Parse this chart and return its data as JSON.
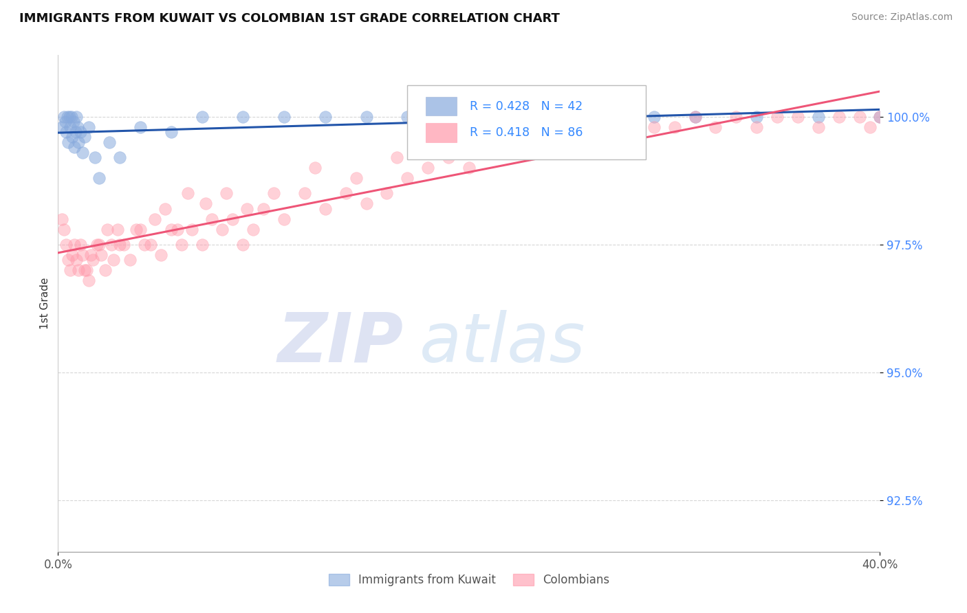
{
  "title": "IMMIGRANTS FROM KUWAIT VS COLOMBIAN 1ST GRADE CORRELATION CHART",
  "source_text": "Source: ZipAtlas.com",
  "ylabel": "1st Grade",
  "xlim": [
    0.0,
    40.0
  ],
  "ylim": [
    91.5,
    101.2
  ],
  "yticks": [
    92.5,
    95.0,
    97.5,
    100.0
  ],
  "xtick_labels": [
    "0.0%",
    "40.0%"
  ],
  "kuwait_R": 0.428,
  "kuwait_N": 42,
  "colombia_R": 0.418,
  "colombia_N": 86,
  "kuwait_color": "#88AADD",
  "colombia_color": "#FF99AA",
  "kuwait_line_color": "#2255AA",
  "colombia_line_color": "#EE5577",
  "watermark_zip": "ZIP",
  "watermark_atlas": "atlas",
  "kuwait_x": [
    0.2,
    0.3,
    0.35,
    0.4,
    0.45,
    0.5,
    0.55,
    0.6,
    0.65,
    0.7,
    0.75,
    0.8,
    0.85,
    0.9,
    0.95,
    1.0,
    1.1,
    1.2,
    1.3,
    1.5,
    1.8,
    2.0,
    2.5,
    3.0,
    4.0,
    5.5,
    7.0,
    9.0,
    11.0,
    13.0,
    15.0,
    17.0,
    19.0,
    21.0,
    23.0,
    25.0,
    27.0,
    29.0,
    31.0,
    34.0,
    37.0,
    40.0
  ],
  "kuwait_y": [
    99.8,
    100.0,
    99.9,
    99.7,
    100.0,
    99.5,
    100.0,
    99.8,
    100.0,
    99.6,
    99.9,
    99.4,
    99.7,
    100.0,
    99.8,
    99.5,
    99.7,
    99.3,
    99.6,
    99.8,
    99.2,
    98.8,
    99.5,
    99.2,
    99.8,
    99.7,
    100.0,
    100.0,
    100.0,
    100.0,
    100.0,
    100.0,
    100.0,
    100.0,
    100.0,
    100.0,
    100.0,
    100.0,
    100.0,
    100.0,
    100.0,
    100.0
  ],
  "colombia_x": [
    0.2,
    0.3,
    0.4,
    0.5,
    0.6,
    0.7,
    0.8,
    0.9,
    1.0,
    1.1,
    1.2,
    1.3,
    1.5,
    1.7,
    1.9,
    2.1,
    2.3,
    2.6,
    2.9,
    3.2,
    3.5,
    4.0,
    4.5,
    5.0,
    5.5,
    6.0,
    6.5,
    7.0,
    7.5,
    8.0,
    8.5,
    9.0,
    9.5,
    10.0,
    11.0,
    12.0,
    13.0,
    14.0,
    15.0,
    16.0,
    17.0,
    18.0,
    19.0,
    20.0,
    21.0,
    22.0,
    23.0,
    24.0,
    25.0,
    26.0,
    27.0,
    28.0,
    29.0,
    30.0,
    31.0,
    32.0,
    33.0,
    34.0,
    35.0,
    36.0,
    37.0,
    38.0,
    39.0,
    39.5,
    40.0,
    1.4,
    1.6,
    2.0,
    2.4,
    2.7,
    3.0,
    3.8,
    4.2,
    4.7,
    5.2,
    5.8,
    6.3,
    7.2,
    8.2,
    9.2,
    10.5,
    12.5,
    14.5,
    16.5,
    18.5,
    21.5
  ],
  "colombia_y": [
    98.0,
    97.8,
    97.5,
    97.2,
    97.0,
    97.3,
    97.5,
    97.2,
    97.0,
    97.5,
    97.3,
    97.0,
    96.8,
    97.2,
    97.5,
    97.3,
    97.0,
    97.5,
    97.8,
    97.5,
    97.2,
    97.8,
    97.5,
    97.3,
    97.8,
    97.5,
    97.8,
    97.5,
    98.0,
    97.8,
    98.0,
    97.5,
    97.8,
    98.2,
    98.0,
    98.5,
    98.2,
    98.5,
    98.3,
    98.5,
    98.8,
    99.0,
    99.2,
    99.0,
    99.3,
    99.5,
    99.3,
    99.5,
    99.5,
    99.7,
    99.8,
    99.5,
    99.8,
    99.8,
    100.0,
    99.8,
    100.0,
    99.8,
    100.0,
    100.0,
    99.8,
    100.0,
    100.0,
    99.8,
    100.0,
    97.0,
    97.3,
    97.5,
    97.8,
    97.2,
    97.5,
    97.8,
    97.5,
    98.0,
    98.2,
    97.8,
    98.5,
    98.3,
    98.5,
    98.2,
    98.5,
    99.0,
    98.8,
    99.2,
    99.5,
    99.3
  ]
}
